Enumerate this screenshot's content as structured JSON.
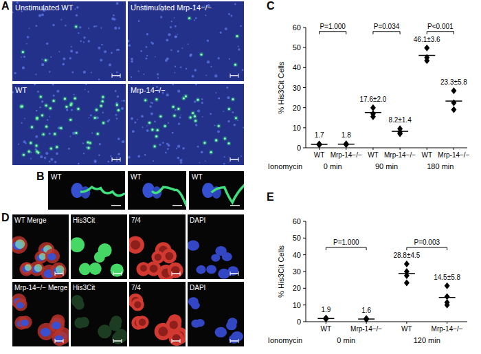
{
  "figure": {
    "panel_a": {
      "letter": "A",
      "labels": [
        "Unstimulated WT",
        "Unstimulated Mrp-14−/−",
        "WT",
        "Mrp-14−/−"
      ]
    },
    "panel_b": {
      "letter": "B",
      "labels": [
        "WT",
        "WT",
        "WT"
      ]
    },
    "panel_c": {
      "letter": "C"
    },
    "panel_d": {
      "letter": "D",
      "rows": [
        [
          "WT Merge",
          "His3Cit",
          "7/4",
          "DAPI"
        ],
        [
          "Mrp-14−/− Merge",
          "His3Cit",
          "7/4",
          "DAPI"
        ]
      ]
    },
    "panel_e": {
      "letter": "E"
    }
  },
  "chart_data": [
    {
      "type": "scatter",
      "ylabel": "% His3Cit Cells",
      "categories": [
        "WT",
        "Mrp-14−/−",
        "WT",
        "Mrp-14−/−",
        "WT",
        "Mrp-14−/−"
      ],
      "values": [
        1.7,
        1.8,
        17.6,
        8.2,
        46.1,
        23.3
      ],
      "value_labels": [
        "1.7",
        "1.8",
        "17.6±2.0",
        "8.2±1.4",
        "46.1±3.6",
        "23.3±5.8"
      ],
      "points": [
        [
          1.5,
          1.7,
          1.9
        ],
        [
          1.6,
          1.8,
          2.0
        ],
        [
          15.5,
          17.0,
          20.0
        ],
        [
          7.0,
          8.0,
          9.5
        ],
        [
          43.5,
          45.0,
          49.8
        ],
        [
          19.0,
          22.5,
          28.5
        ]
      ],
      "group_label": "Ionomycin",
      "groups": [
        "0 min",
        "90 min",
        "180 min"
      ],
      "annotations": [
        "P=1.000",
        "P=0.034",
        "P<0.001"
      ],
      "ylim": [
        0,
        60
      ],
      "yticks": [
        0,
        10,
        20,
        30,
        40,
        50,
        60
      ],
      "grid": false,
      "data_labels": true,
      "marker": "diamond",
      "color": "#000000"
    },
    {
      "type": "scatter",
      "ylabel": "% His3Cit Cells",
      "categories": [
        "WT",
        "Mrp-14−/−",
        "WT",
        "Mrp-14−/−"
      ],
      "values": [
        1.9,
        1.6,
        28.8,
        14.5
      ],
      "value_labels": [
        "1.9",
        "1.6",
        "28.8±4.5",
        "14.5±5.8"
      ],
      "points": [
        [
          1.6,
          1.8,
          2.0,
          2.2
        ],
        [
          1.4,
          1.5,
          1.7,
          1.8
        ],
        [
          34.5,
          30.0,
          27.5,
          23.2
        ],
        [
          21.5,
          15.0,
          11.5,
          10.0
        ]
      ],
      "group_label": "Ionomycin",
      "groups": [
        "0 min",
        "120 min"
      ],
      "annotations": [
        "P=1.000",
        "P=0.003"
      ],
      "ylim": [
        0,
        60
      ],
      "yticks": [
        0,
        10,
        20,
        30,
        40,
        50,
        60
      ],
      "grid": false,
      "data_labels": true,
      "marker": "diamond",
      "color": "#000000"
    }
  ]
}
